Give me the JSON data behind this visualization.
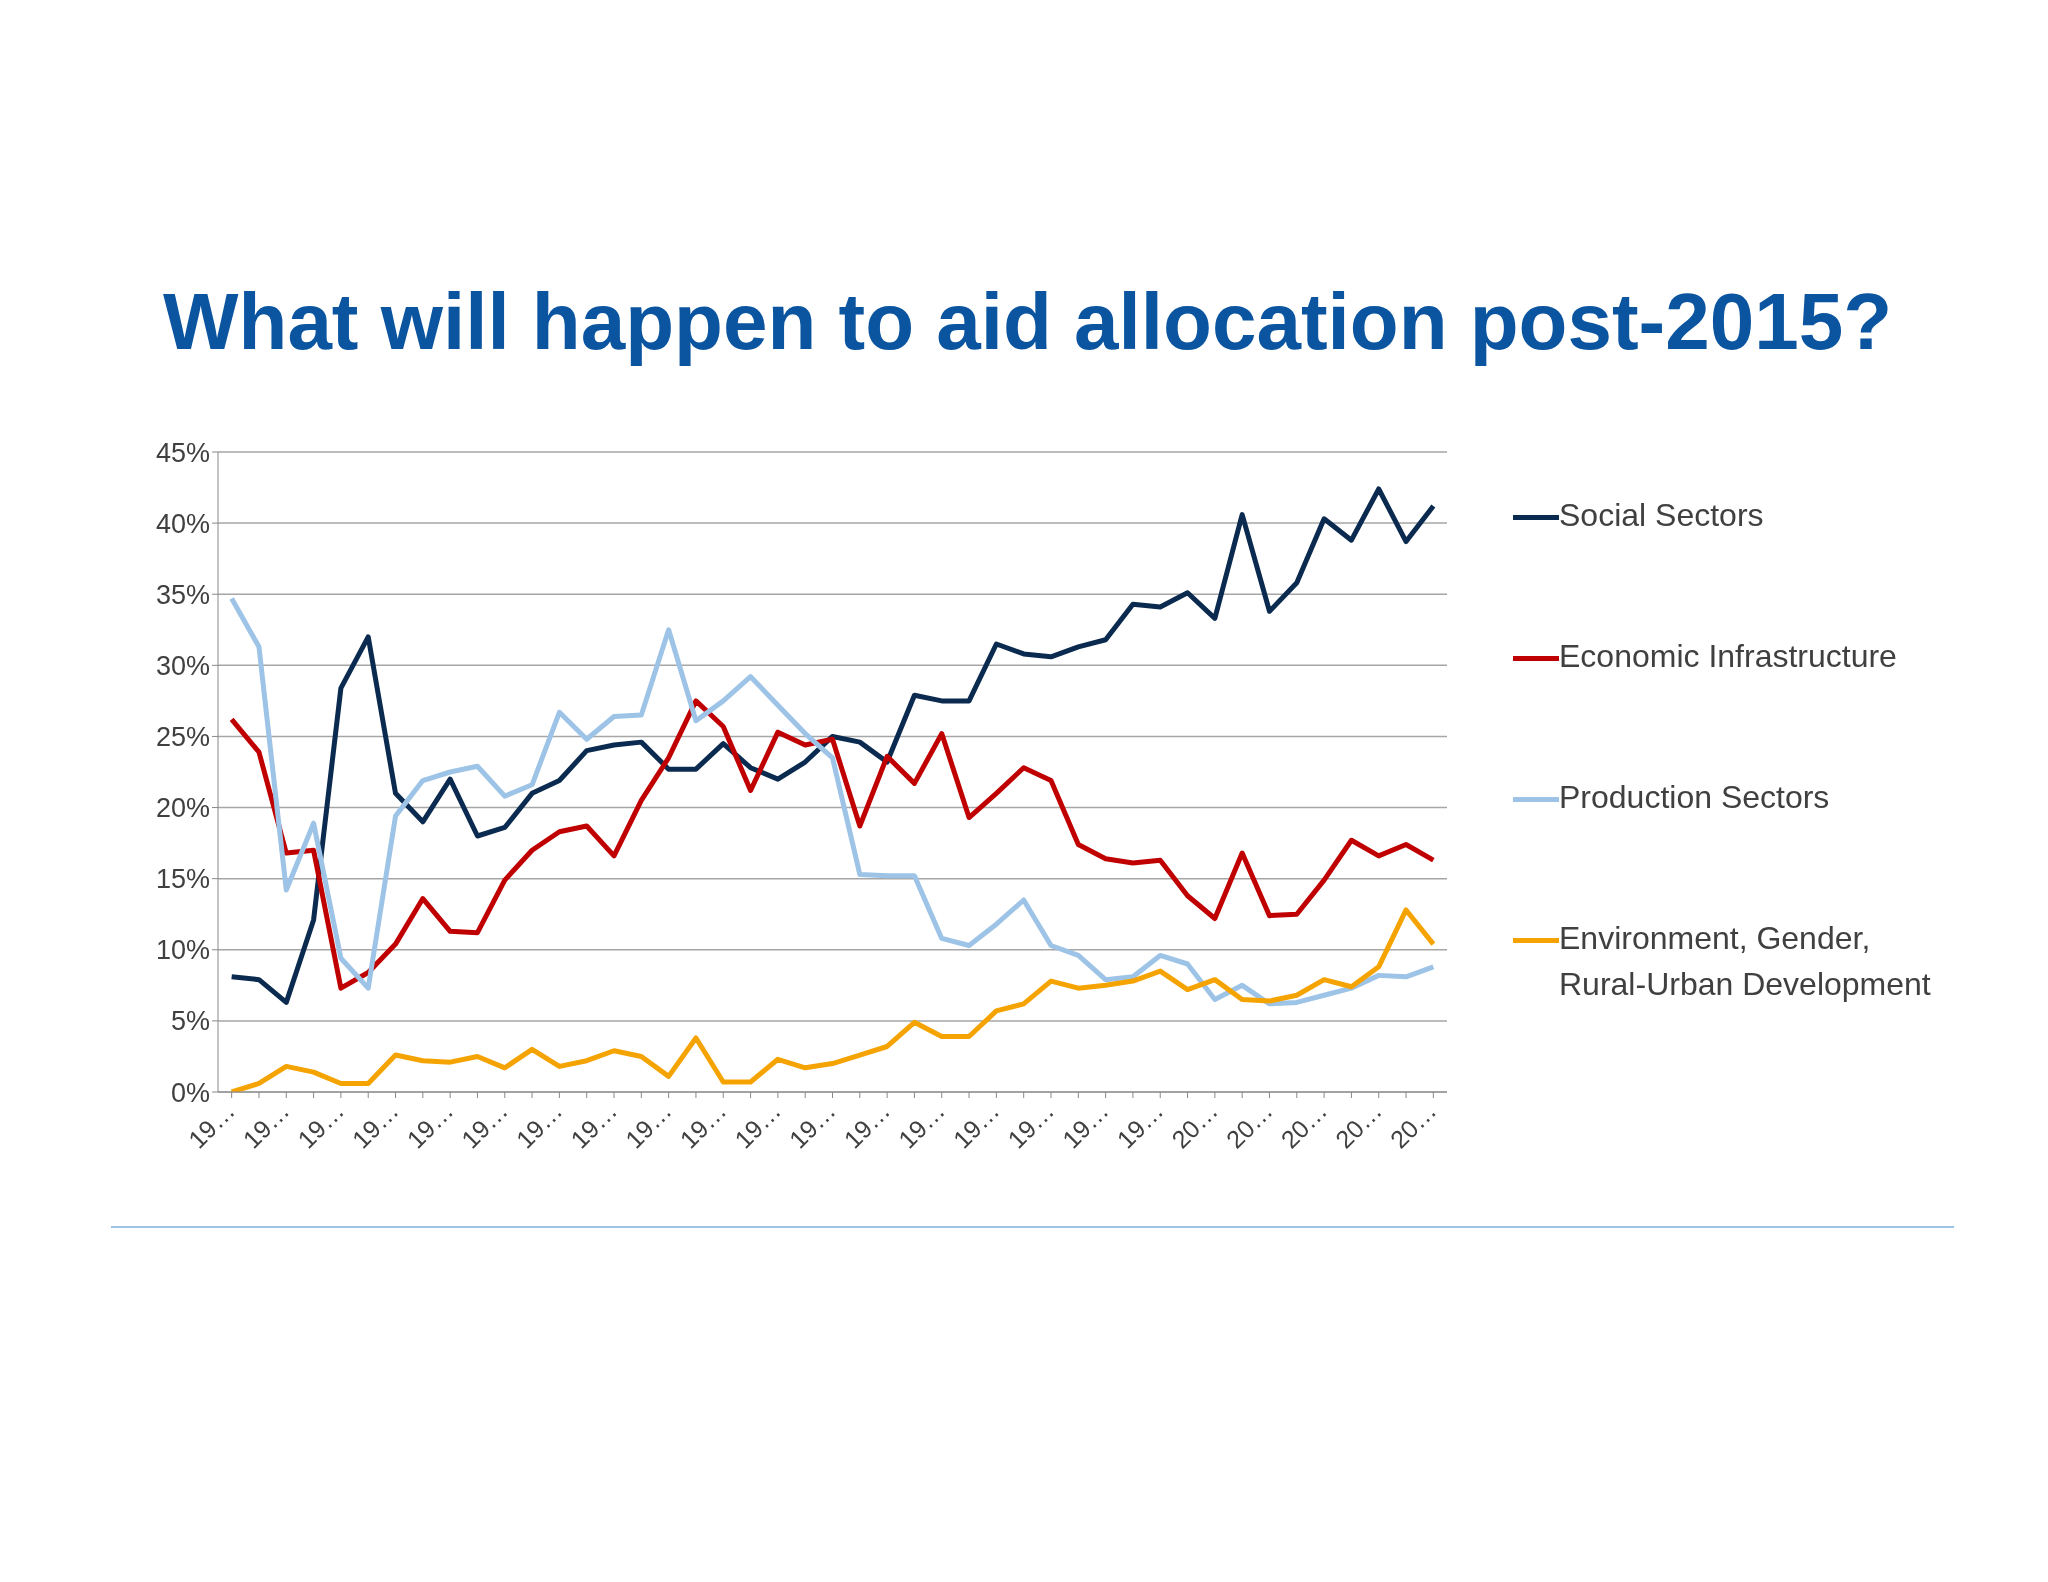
{
  "chart_data": {
    "type": "line",
    "title": "What will happen to aid allocation post-2015?",
    "categories": [
      "19…",
      null,
      "19…",
      null,
      "19…",
      null,
      "19…",
      null,
      "19…",
      null,
      "19…",
      null,
      "19…",
      null,
      "19…",
      null,
      "19…",
      null,
      "19…",
      null,
      "19…",
      null,
      "19…",
      null,
      "19…",
      null,
      "19…",
      null,
      "19…",
      null,
      "19…",
      null,
      "19…",
      null,
      "19…",
      null,
      "20…",
      null,
      "20…",
      null,
      "20…",
      null,
      "20…",
      null,
      "20…"
    ],
    "series": [
      {
        "name": "Social Sectors",
        "color": "#0b2a4f",
        "values": [
          8.1,
          7.9,
          6.3,
          12.1,
          28.4,
          32.0,
          21.0,
          19.0,
          22.0,
          18.0,
          18.6,
          21.0,
          21.9,
          24.0,
          24.4,
          24.6,
          22.7,
          22.7,
          24.5,
          22.8,
          22.0,
          23.2,
          25.0,
          24.6,
          23.2,
          27.9,
          27.5,
          27.5,
          31.5,
          30.8,
          30.6,
          31.3,
          31.8,
          34.3,
          34.1,
          35.1,
          33.3,
          40.6,
          33.8,
          35.8,
          40.3,
          38.8,
          42.4,
          38.7,
          41.2
        ]
      },
      {
        "name": "Economic Infrastructure",
        "color": "#c00000",
        "values": [
          26.2,
          23.9,
          16.8,
          17.0,
          7.3,
          8.4,
          10.4,
          13.6,
          11.3,
          11.2,
          14.9,
          17.0,
          18.3,
          18.7,
          16.6,
          20.5,
          23.5,
          27.5,
          25.7,
          21.2,
          25.3,
          24.4,
          24.8,
          18.7,
          23.6,
          21.7,
          25.2,
          19.3,
          21.0,
          22.8,
          21.9,
          17.4,
          16.4,
          16.1,
          16.3,
          13.8,
          12.2,
          16.8,
          12.4,
          12.5,
          14.9,
          17.7,
          16.6,
          17.4,
          16.3
        ]
      },
      {
        "name": "Production Sectors",
        "color": "#9dc3e6",
        "values": [
          34.7,
          31.3,
          14.2,
          18.9,
          9.4,
          7.3,
          19.4,
          21.9,
          22.5,
          22.9,
          20.8,
          21.6,
          26.7,
          24.8,
          26.4,
          26.5,
          32.5,
          26.1,
          27.5,
          29.2,
          27.2,
          25.2,
          23.5,
          15.3,
          15.2,
          15.2,
          10.8,
          10.3,
          11.8,
          13.5,
          10.3,
          9.6,
          7.9,
          8.1,
          9.6,
          9.0,
          6.5,
          7.5,
          6.2,
          6.3,
          6.8,
          7.3,
          8.2,
          8.1,
          8.8
        ]
      },
      {
        "name": "Environment, Gender, Rural-Urban Development",
        "color": "#f5a300",
        "values": [
          0,
          0.6,
          1.8,
          1.4,
          0.6,
          0.6,
          2.6,
          2.2,
          2.1,
          2.5,
          1.7,
          3.0,
          1.8,
          2.2,
          2.9,
          2.5,
          1.1,
          3.8,
          0.7,
          0.7,
          2.3,
          1.7,
          2.0,
          2.6,
          3.2,
          4.9,
          3.9,
          3.9,
          5.7,
          6.2,
          7.8,
          7.3,
          7.5,
          7.8,
          8.5,
          7.2,
          7.9,
          6.5,
          6.4,
          6.8,
          7.9,
          7.4,
          8.8,
          12.8,
          10.4
        ]
      }
    ],
    "ylim": [
      0,
      45
    ],
    "yticks": [
      {
        "value": 0,
        "label": "0%"
      },
      {
        "value": 5,
        "label": "5%"
      },
      {
        "value": 10,
        "label": "10%"
      },
      {
        "value": 15,
        "label": "15%"
      },
      {
        "value": 20,
        "label": "20%"
      },
      {
        "value": 25,
        "label": "25%"
      },
      {
        "value": 30,
        "label": "30%"
      },
      {
        "value": 35,
        "label": "35%"
      },
      {
        "value": 40,
        "label": "40%"
      },
      {
        "value": 45,
        "label": "45%"
      }
    ],
    "grid": "y",
    "legend": "right",
    "marker": "none",
    "line_style": "solid"
  }
}
